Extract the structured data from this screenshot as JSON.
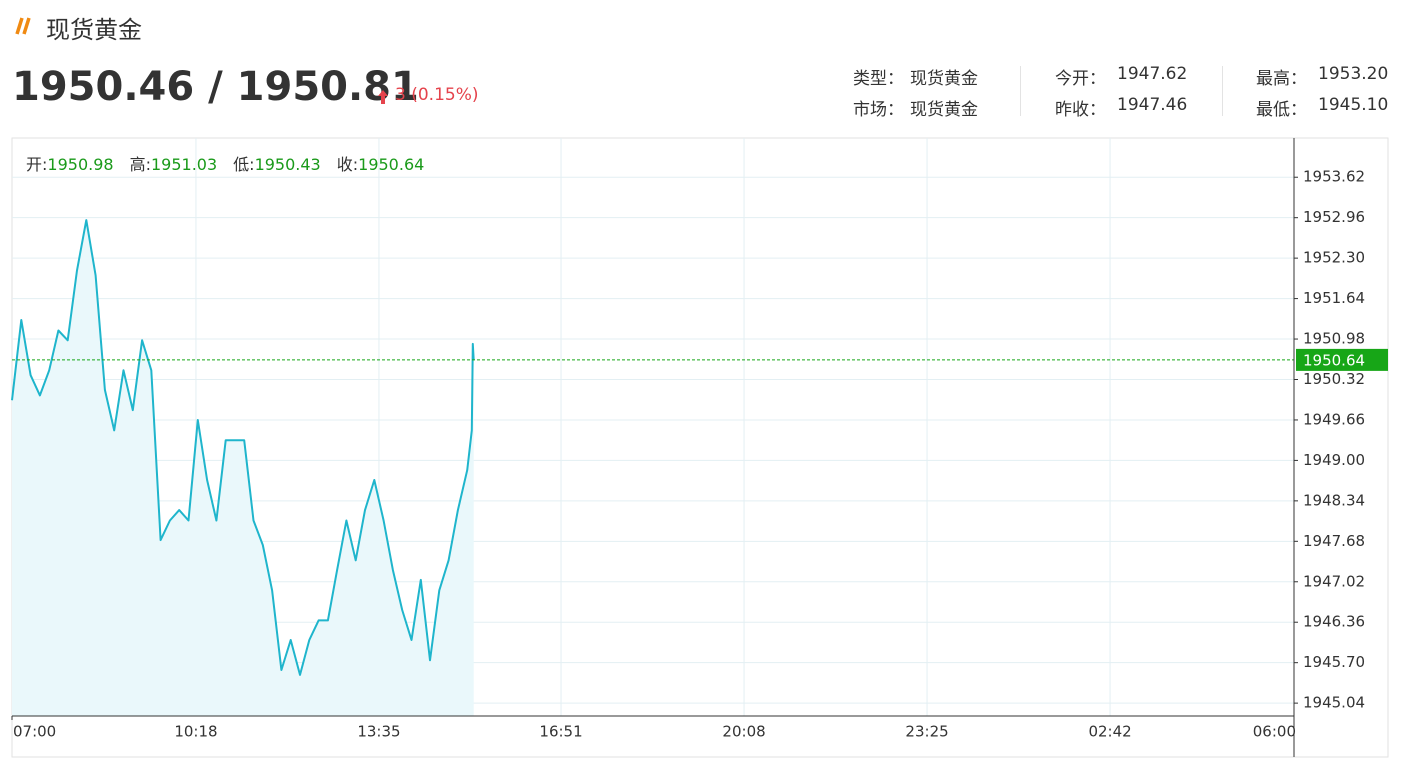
{
  "header": {
    "title": "现货黄金",
    "price": "1950.46 / 1950.81",
    "change": "3 (0.15%)"
  },
  "info": [
    [
      {
        "label": "类型：",
        "value": "现货黄金"
      },
      {
        "label": "今开：",
        "value": "1947.62"
      },
      {
        "label": "最高：",
        "value": "1953.20"
      }
    ],
    [
      {
        "label": "市场：",
        "value": "现货黄金"
      },
      {
        "label": "昨收：",
        "value": "1947.46"
      },
      {
        "label": "最低：",
        "value": "1945.10"
      }
    ]
  ],
  "ohlc": [
    {
      "label": "开:",
      "value": "1950.98"
    },
    {
      "label": "高:",
      "value": "1951.03"
    },
    {
      "label": "低:",
      "value": "1950.43"
    },
    {
      "label": "收:",
      "value": "1950.64"
    }
  ],
  "chart_data": {
    "type": "line",
    "color": "#1fb5cc",
    "fill": "#eaf8fb",
    "grid": true,
    "x": [
      "07:00",
      "07:10",
      "07:20",
      "07:30",
      "07:40",
      "07:50",
      "08:00",
      "08:10",
      "08:20",
      "08:30",
      "08:40",
      "08:50",
      "09:00",
      "09:10",
      "09:20",
      "09:30",
      "09:40",
      "09:50",
      "10:00",
      "10:10",
      "10:20",
      "10:30",
      "10:40",
      "10:50",
      "11:00",
      "11:10",
      "11:20",
      "11:30",
      "11:40",
      "11:50",
      "12:00",
      "12:10",
      "12:20",
      "12:30",
      "12:40",
      "12:50",
      "13:00",
      "13:10",
      "13:20",
      "13:30",
      "13:40",
      "13:50",
      "14:00",
      "14:10",
      "14:20",
      "14:30",
      "14:40",
      "14:50",
      "15:00",
      "15:10",
      "15:15",
      "15:16",
      "15:17"
    ],
    "values": [
      1949.98,
      1951.29,
      1950.39,
      1950.06,
      1950.47,
      1951.12,
      1950.96,
      1952.1,
      1952.92,
      1952.02,
      1950.15,
      1949.49,
      1950.47,
      1949.82,
      1950.96,
      1950.47,
      1947.7,
      1948.02,
      1948.19,
      1948.02,
      1949.66,
      1948.68,
      1948.02,
      1949.33,
      1949.33,
      1949.33,
      1948.02,
      1947.62,
      1946.88,
      1945.58,
      1946.07,
      1945.5,
      1946.07,
      1946.39,
      1946.39,
      1947.21,
      1948.02,
      1947.37,
      1948.19,
      1948.68,
      1948.02,
      1947.21,
      1946.56,
      1946.07,
      1947.05,
      1945.74,
      1946.88,
      1947.37,
      1948.19,
      1948.84,
      1949.49,
      1950.9,
      1950.64
    ],
    "xlim": [
      "07:00",
      "06:00"
    ],
    "xticks": [
      "07:00",
      "10:18",
      "13:35",
      "16:51",
      "20:08",
      "23:25",
      "02:42",
      "06:00"
    ],
    "ylim": [
      1944.83,
      1954.26
    ],
    "yticks": [
      1953.62,
      1952.96,
      {
        "value": 1952.3,
        "label": "1952.30"
      },
      1951.64,
      1950.98,
      1950.32,
      1949.66,
      {
        "value": 1949,
        "label": "1949.00"
      },
      1948.34,
      1947.68,
      1947.02,
      1946.36,
      {
        "value": 1945.7,
        "label": "1945.70"
      },
      1945.04
    ],
    "last_price": 1950.64,
    "last_color": "#17a617"
  }
}
